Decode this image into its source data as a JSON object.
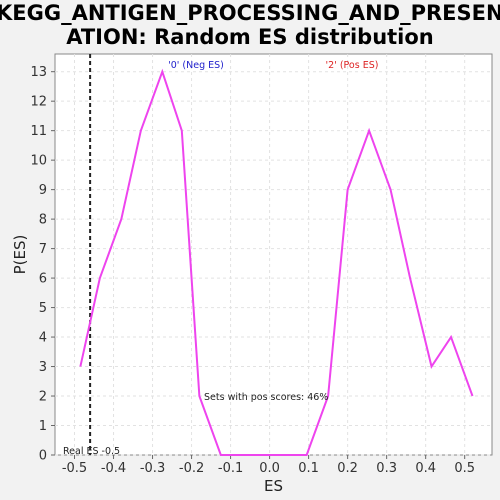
{
  "title_line1": "KEGG_ANTIGEN_PROCESSING_AND_PRESENT",
  "title_line2": "ATION: Random ES distribution",
  "chart_data": {
    "type": "line",
    "title": "KEGG_ANTIGEN_PROCESSING_AND_PRESENTATION: Random ES distribution",
    "xlabel": "ES",
    "ylabel": "P(ES)",
    "xlim": [
      -0.55,
      0.57
    ],
    "ylim": [
      0,
      13.6
    ],
    "x_ticks": [
      -0.5,
      -0.4,
      -0.3,
      -0.2,
      -0.1,
      0.0,
      0.1,
      0.2,
      0.3,
      0.4,
      0.5
    ],
    "x_tick_labels": [
      "-0.5",
      "-0.4",
      "-0.3",
      "-0.2",
      "-0.1",
      "0.0",
      "0.1",
      "0.2",
      "0.3",
      "0.4",
      "0.5"
    ],
    "y_ticks": [
      0,
      1,
      2,
      3,
      4,
      5,
      6,
      7,
      8,
      9,
      10,
      11,
      12,
      13
    ],
    "grid": true,
    "series": [
      {
        "color": "#ee44ee",
        "x": [
          -0.485,
          -0.435,
          -0.38,
          -0.33,
          -0.275,
          -0.225,
          -0.18,
          -0.125,
          -0.07,
          -0.02,
          0.03,
          0.095,
          0.15,
          0.2,
          0.255,
          0.31,
          0.36,
          0.415,
          0.465,
          0.52
        ],
        "y": [
          3,
          6,
          8,
          11,
          13,
          11,
          2,
          0,
          0,
          0,
          0,
          0,
          2,
          9,
          11,
          9,
          6,
          3,
          4,
          2
        ]
      }
    ],
    "real_es": {
      "value": -0.46,
      "label": "Real ES -0.5"
    },
    "annotations": {
      "neg": {
        "text": "'0' (Neg ES)",
        "color": "#2222cc"
      },
      "pos": {
        "text": "'2' (Pos ES)",
        "color": "#dd2222"
      },
      "pos_scores": "Sets with pos scores: 46%"
    }
  }
}
